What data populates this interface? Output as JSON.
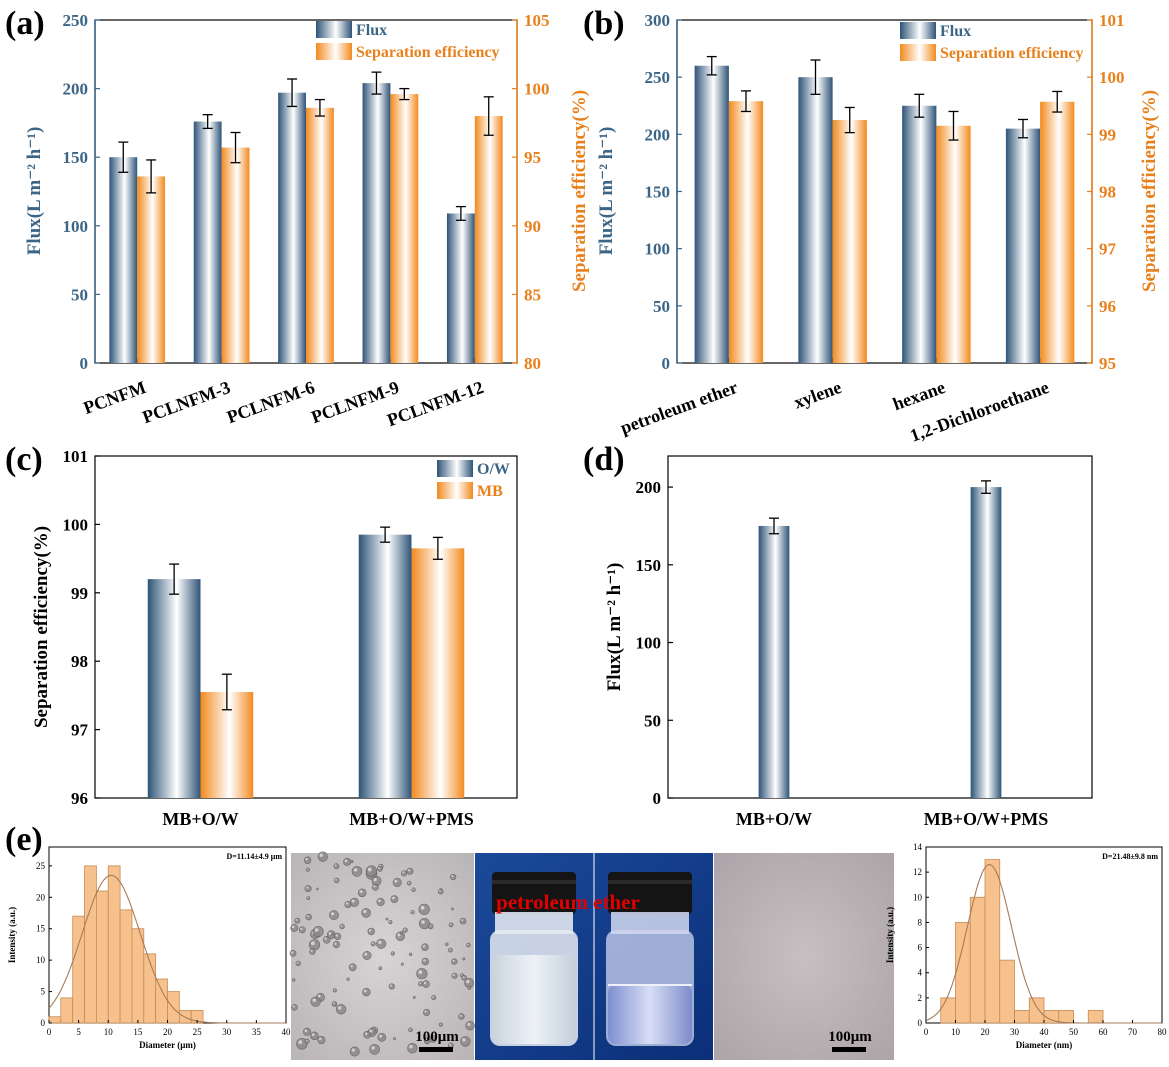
{
  "colors": {
    "flux_dark": "#2e5478",
    "flux_light": "#ffffff",
    "sep_dark": "#f28a1e",
    "sep_light": "#ffffff",
    "flux_axis": "#3a6587",
    "sep_axis": "#e8801c",
    "hist_fill": "#f7c18d",
    "hist_edge": "#c58b55",
    "fit_line": "#a87a58",
    "annotation_red": "#e00000"
  },
  "chart_data": [
    {
      "id": "a",
      "panel_label": "(a)",
      "type": "bar",
      "categories": [
        "PCNFM",
        "PCLNFM-3",
        "PCLNFM-6",
        "PCLNFM-9",
        "PCLNFM-12"
      ],
      "series": [
        {
          "name": "Flux",
          "axis": "left",
          "values": [
            150,
            176,
            197,
            204,
            109
          ],
          "errors": [
            11,
            5,
            10,
            8,
            5
          ]
        },
        {
          "name": "Separation efficiency",
          "axis": "right",
          "values": [
            93.6,
            95.7,
            98.6,
            99.6,
            98.0
          ],
          "errors": [
            1.2,
            1.1,
            0.6,
            0.4,
            1.4
          ]
        }
      ],
      "ylabel": "Flux(L m⁻² h⁻¹)",
      "ylabel2": "Separation efficiency(%)",
      "ylim": [
        0,
        250
      ],
      "yticks": [
        0,
        50,
        100,
        150,
        200,
        250
      ],
      "ylim2": [
        80,
        105
      ],
      "yticks2": [
        80,
        85,
        90,
        95,
        100,
        105
      ],
      "legend": "top-right"
    },
    {
      "id": "b",
      "panel_label": "(b)",
      "type": "bar",
      "categories": [
        "petroleum ether",
        "xylene",
        "hexane",
        "1,2-Dichloroethane"
      ],
      "series": [
        {
          "name": "Flux",
          "axis": "left",
          "values": [
            260,
            250,
            225,
            205
          ],
          "errors": [
            8,
            15,
            10,
            8
          ]
        },
        {
          "name": "Separation efficiency",
          "axis": "right",
          "values": [
            99.58,
            99.25,
            99.15,
            99.57
          ],
          "errors": [
            0.18,
            0.22,
            0.25,
            0.18
          ]
        }
      ],
      "ylabel": "Flux(L m⁻² h⁻¹)",
      "ylabel2": "Separation efficiency(%)",
      "ylim": [
        0,
        300
      ],
      "yticks": [
        0,
        50,
        100,
        150,
        200,
        250,
        300
      ],
      "ylim2": [
        95,
        101
      ],
      "yticks2": [
        95,
        96,
        97,
        98,
        99,
        100,
        101
      ],
      "legend": "top-right"
    },
    {
      "id": "c",
      "panel_label": "(c)",
      "type": "bar",
      "categories": [
        "MB+O/W",
        "MB+O/W+PMS"
      ],
      "series": [
        {
          "name": "O/W",
          "axis": "left",
          "values": [
            99.2,
            99.85
          ],
          "errors": [
            0.22,
            0.11
          ]
        },
        {
          "name": "MB",
          "axis": "left",
          "values": [
            97.55,
            99.65
          ],
          "errors": [
            0.26,
            0.16
          ]
        }
      ],
      "ylabel": "Separation efficiency(%)",
      "ylim": [
        96,
        101
      ],
      "yticks": [
        96,
        97,
        98,
        99,
        100,
        101
      ],
      "legend": "top-right"
    },
    {
      "id": "d",
      "panel_label": "(d)",
      "type": "bar",
      "categories": [
        "MB+O/W",
        "MB+O/W+PMS"
      ],
      "series": [
        {
          "name": "Flux",
          "axis": "left",
          "values": [
            175,
            200
          ],
          "errors": [
            5,
            4
          ]
        }
      ],
      "ylabel": "Flux(L m⁻² h⁻¹)",
      "ylim": [
        0,
        220
      ],
      "yticks": [
        0,
        50,
        100,
        150,
        200
      ],
      "legend": "none"
    },
    {
      "id": "e1",
      "panel_label": "(e)",
      "type": "bar",
      "subtype": "histogram",
      "annotation": "D=11.14±4.9 μm",
      "bin_width": 2,
      "bin_starts": [
        0,
        2,
        4,
        6,
        8,
        10,
        12,
        14,
        16,
        18,
        20,
        22,
        24
      ],
      "values": [
        1,
        4,
        17,
        25,
        21,
        25,
        18,
        15,
        11,
        7,
        5,
        2,
        2
      ],
      "xlabel": "Diameter (μm)",
      "ylabel": "Intensity (a.u.)",
      "xlim": [
        0,
        40
      ],
      "xticks": [
        0,
        5,
        10,
        15,
        20,
        25,
        30,
        35,
        40
      ],
      "ylim": [
        0,
        28
      ],
      "yticks": [
        0,
        5,
        10,
        15,
        20,
        25
      ],
      "fit": {
        "type": "gaussian",
        "mean": 10.5,
        "sd": 4.9,
        "peak": 23.5
      }
    },
    {
      "id": "e2",
      "type": "bar",
      "subtype": "histogram",
      "annotation": "D=21.48±9.8 nm",
      "bin_width": 5,
      "bin_starts": [
        5,
        10,
        15,
        20,
        25,
        30,
        35,
        40,
        45,
        50,
        55
      ],
      "values": [
        2,
        8,
        10,
        13,
        5,
        1,
        2,
        1,
        1,
        0,
        1
      ],
      "xlabel": "Diameter (nm)",
      "ylabel": "Intensity (a.u.)",
      "xlim": [
        0,
        80
      ],
      "xticks": [
        0,
        10,
        20,
        30,
        40,
        50,
        60,
        70,
        80
      ],
      "ylim": [
        0,
        14
      ],
      "yticks": [
        0,
        2,
        4,
        6,
        8,
        10,
        12,
        14
      ],
      "fit": {
        "type": "gaussian",
        "mean": 21.5,
        "sd": 7.5,
        "peak": 12.6
      }
    }
  ],
  "photos": {
    "scale_bar_left": "100μm",
    "scale_bar_right": "100μm",
    "vial_label": "petroleum ether"
  }
}
